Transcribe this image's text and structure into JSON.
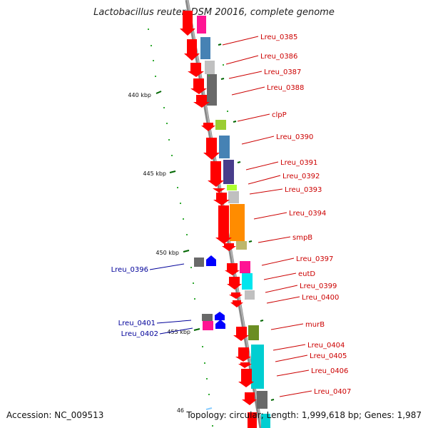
{
  "title": "Lactobacillus reuteri DSM 20016, complete genome",
  "accession": "Accession: NC_009513",
  "summary": "Topology: circular; Length: 1,999,618 bp; Genes: 1,987",
  "colors": {
    "backbone": "#999999",
    "gene_arrow": "#ff0000",
    "label_forward": "#cc0000",
    "label_reverse": "#000099",
    "reverse_arrow": "#0000ff",
    "tick": "#006600",
    "dot": "#33aa33"
  },
  "kbp_ticks": [
    {
      "label": "440 kbp"
    },
    {
      "label": "445 kbp"
    },
    {
      "label": "450 kbp"
    },
    {
      "label": "455 kbp"
    },
    {
      "label": "46"
    }
  ],
  "forward_labels": [
    "Lreu_0385",
    "Lreu_0386",
    "Lreu_0387",
    "Lreu_0388",
    "clpP",
    "Lreu_0390",
    "Lreu_0391",
    "Lreu_0392",
    "Lreu_0393",
    "Lreu_0394",
    "smpB",
    "Lreu_0397",
    "eutD",
    "Lreu_0399",
    "Lreu_0400",
    "murB",
    "Lreu_0404",
    "Lreu_0405",
    "Lreu_0406",
    "Lreu_0407"
  ],
  "reverse_labels": [
    "Lreu_0396",
    "Lreu_0401",
    "Lreu_0402"
  ]
}
